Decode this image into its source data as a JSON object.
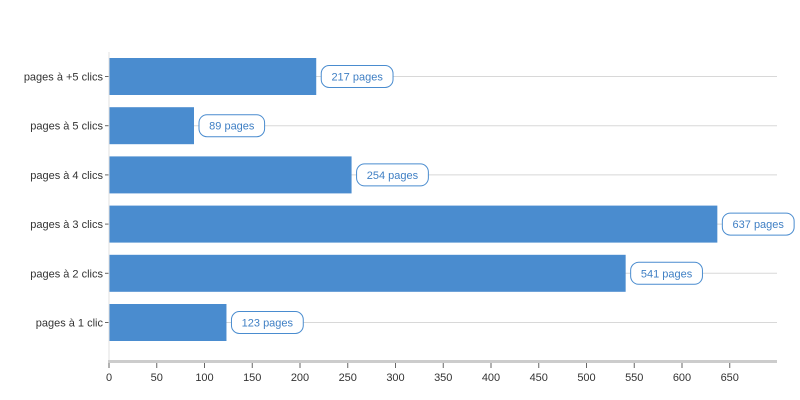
{
  "chart_data": {
    "type": "bar",
    "orientation": "horizontal",
    "categories": [
      "pages à +5 clics",
      "pages à 5 clics",
      "pages à 4 clics",
      "pages à 3 clics",
      "pages à 2 clics",
      "pages à 1 clic"
    ],
    "values": [
      217,
      89,
      254,
      637,
      541,
      123
    ],
    "data_labels": [
      "217 pages",
      "89 pages",
      "254 pages",
      "637 pages",
      "541 pages",
      "123 pages"
    ],
    "x_ticks": [
      "0",
      "50",
      "100",
      "150",
      "200",
      "250",
      "300",
      "350",
      "400",
      "450",
      "500",
      "550",
      "600",
      "650"
    ],
    "xlim": [
      0,
      700
    ],
    "title": "",
    "xlabel": "",
    "ylabel": "",
    "grid": "horizontal",
    "legend": "none",
    "colors": {
      "bar": "#4a8ccf",
      "label_border": "#4a8ccf",
      "label_text": "#3f7fc4",
      "grid": "#d8d8d8",
      "axis": "#cccccc",
      "tick_text": "#333333"
    }
  }
}
